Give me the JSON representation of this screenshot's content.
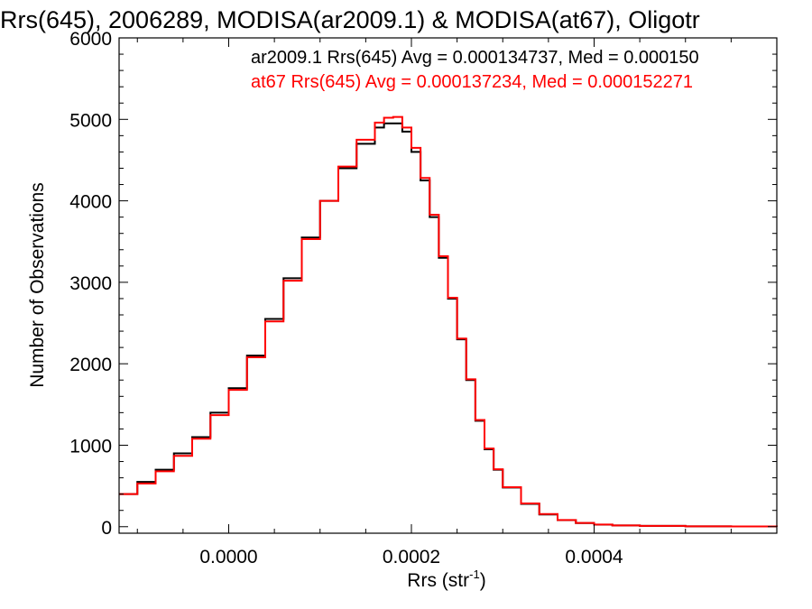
{
  "chart_data": {
    "type": "line",
    "title": "Rrs(645), 2006289, MODISA(ar2009.1) & MODISA(at67), Oligotr",
    "xlabel": "Rrs (str",
    "xlabel_sup": "-1",
    "xlabel_close": ")",
    "ylabel": "Number of Observations",
    "xlim": [
      -0.00012,
      0.0006
    ],
    "ylim": [
      -80,
      6000
    ],
    "x_ticks": [
      0.0,
      0.0002,
      0.0004
    ],
    "x_tick_labels": [
      "0.0000",
      "0.0002",
      "0.0004"
    ],
    "y_ticks": [
      0,
      1000,
      2000,
      3000,
      4000,
      5000,
      6000
    ],
    "y_tick_labels": [
      "0",
      "1000",
      "2000",
      "3000",
      "4000",
      "5000",
      "6000"
    ],
    "grid": false,
    "legend_position": "top-right",
    "x": [
      -0.00012,
      -0.0001,
      -8e-05,
      -6e-05,
      -4e-05,
      -2e-05,
      0.0,
      2e-05,
      4e-05,
      6e-05,
      8e-05,
      0.0001,
      0.00012,
      0.00014,
      0.00016,
      0.00017,
      0.00018,
      0.00019,
      0.0002,
      0.00021,
      0.00022,
      0.00023,
      0.00024,
      0.00025,
      0.00026,
      0.00027,
      0.00028,
      0.00029,
      0.0003,
      0.00032,
      0.00034,
      0.00036,
      0.00038,
      0.0004,
      0.00042,
      0.00045,
      0.0005,
      0.00055,
      0.0006
    ],
    "series": [
      {
        "name": "ar2009.1 Rrs(645) Avg = 0.000134737, Med = 0.000150",
        "color": "#000000",
        "values": [
          400,
          550,
          700,
          900,
          1100,
          1400,
          1700,
          2100,
          2550,
          3050,
          3550,
          4000,
          4400,
          4700,
          4900,
          4950,
          4950,
          4850,
          4600,
          4250,
          3800,
          3300,
          2800,
          2300,
          1800,
          1300,
          950,
          700,
          480,
          280,
          150,
          80,
          45,
          25,
          15,
          10,
          5,
          3,
          0
        ]
      },
      {
        "name": "at67 Rrs(645) Avg = 0.000137234, Med = 0.000152271",
        "color": "#ff0000",
        "values": [
          400,
          530,
          680,
          870,
          1080,
          1370,
          1680,
          2080,
          2520,
          3020,
          3530,
          4000,
          4420,
          4750,
          4960,
          5020,
          5030,
          4900,
          4650,
          4280,
          3830,
          3320,
          2810,
          2310,
          1810,
          1310,
          960,
          705,
          485,
          285,
          155,
          82,
          46,
          26,
          16,
          10,
          5,
          3,
          0
        ]
      }
    ]
  }
}
